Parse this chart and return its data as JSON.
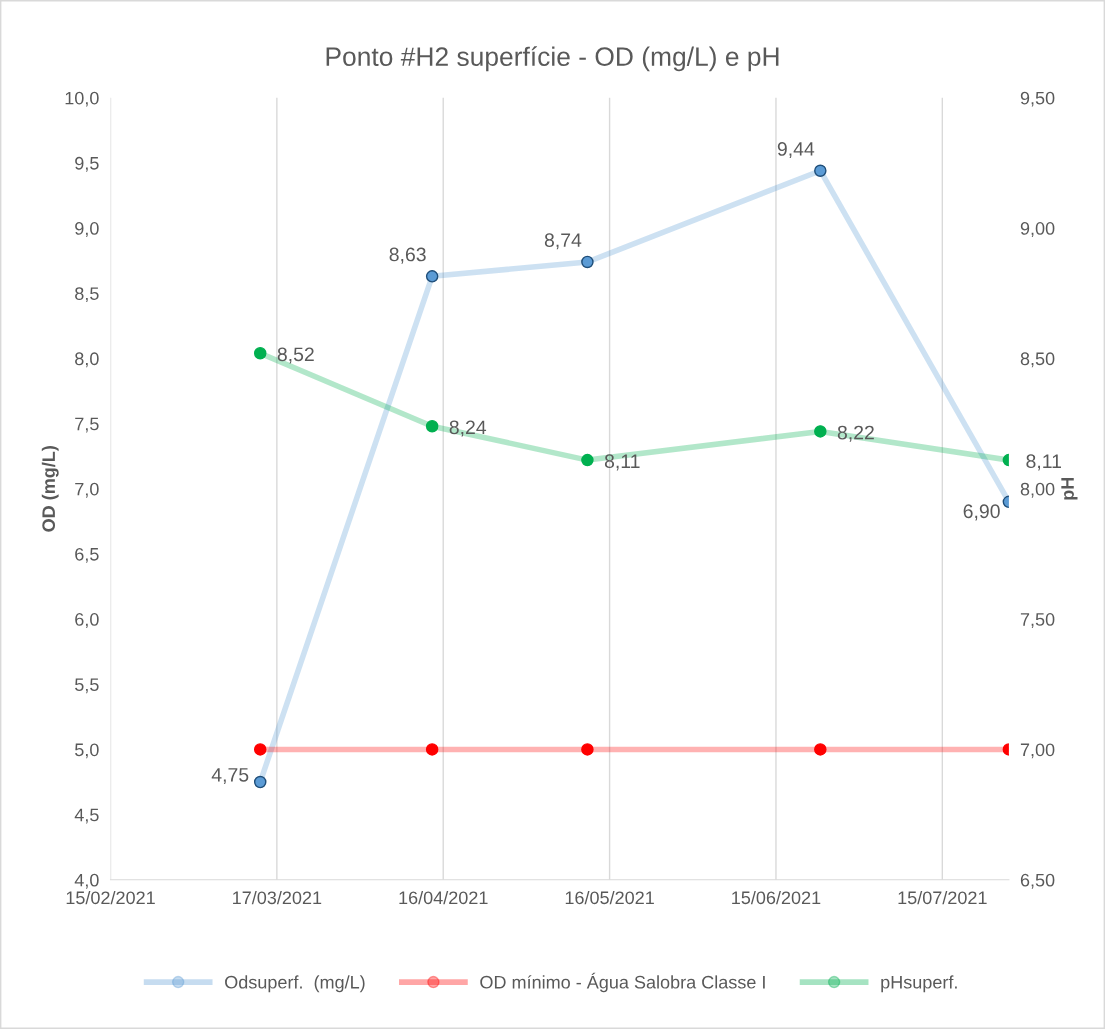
{
  "chart_data": {
    "type": "line",
    "title": "Ponto #H2 superfície - OD (mg/L) e pH",
    "ylabel": "OD (mg/L)",
    "y2label": "pH",
    "x": [
      "2021-03-14",
      "2021-04-14",
      "2021-05-12",
      "2021-06-23",
      "2021-07-27"
    ],
    "series": [
      {
        "name": "Odsuperf.  (mg/L)",
        "color": "#5b9bd5",
        "values": [
          4.75,
          8.63,
          8.74,
          9.44,
          6.9
        ],
        "value_labels": [
          "4,75",
          "8,63",
          "8,74",
          "9,44",
          "6,90"
        ]
      },
      {
        "name": "OD mínimo - Água Salobra Classe I",
        "color": "#ff0000",
        "values": [
          5.0,
          5.0,
          5.0,
          5.0,
          5.0
        ]
      },
      {
        "name": "pHsuperf.",
        "color": "#00b050",
        "axis": "y2",
        "values": [
          8.52,
          8.24,
          8.11,
          8.22,
          8.11
        ],
        "value_labels": [
          "8,52",
          "8,24",
          "8,11",
          "8,22",
          "8,11"
        ]
      }
    ],
    "xlim": [
      "2021-02-15",
      "2021-07-27"
    ],
    "xticks": [
      {
        "value": "2021-02-15",
        "label": "15/02/2021"
      },
      {
        "value": "2021-03-17",
        "label": "17/03/2021"
      },
      {
        "value": "2021-04-16",
        "label": "16/04/2021"
      },
      {
        "value": "2021-05-16",
        "label": "16/05/2021"
      },
      {
        "value": "2021-06-15",
        "label": "15/06/2021"
      },
      {
        "value": "2021-07-15",
        "label": "15/07/2021"
      }
    ],
    "ylim": [
      4.0,
      10.0
    ],
    "yticks": [
      {
        "value": 4.0,
        "label": "4,0"
      },
      {
        "value": 4.5,
        "label": "4,5"
      },
      {
        "value": 5.0,
        "label": "5,0"
      },
      {
        "value": 5.5,
        "label": "5,5"
      },
      {
        "value": 6.0,
        "label": "6,0"
      },
      {
        "value": 6.5,
        "label": "6,5"
      },
      {
        "value": 7.0,
        "label": "7,0"
      },
      {
        "value": 7.5,
        "label": "7,5"
      },
      {
        "value": 8.0,
        "label": "8,0"
      },
      {
        "value": 8.5,
        "label": "8,5"
      },
      {
        "value": 9.0,
        "label": "9,0"
      },
      {
        "value": 9.5,
        "label": "9,5"
      },
      {
        "value": 10.0,
        "label": "10,0"
      }
    ],
    "y2lim": [
      6.5,
      9.5
    ],
    "y2ticks": [
      {
        "value": 6.5,
        "label": "6,50"
      },
      {
        "value": 7.0,
        "label": "7,00"
      },
      {
        "value": 7.5,
        "label": "7,50"
      },
      {
        "value": 8.0,
        "label": "8,00"
      },
      {
        "value": 8.5,
        "label": "8,50"
      },
      {
        "value": 9.0,
        "label": "9,00"
      },
      {
        "value": 9.5,
        "label": "9,50"
      }
    ],
    "grid": "x",
    "legend": "bottom",
    "marker": "circle"
  }
}
